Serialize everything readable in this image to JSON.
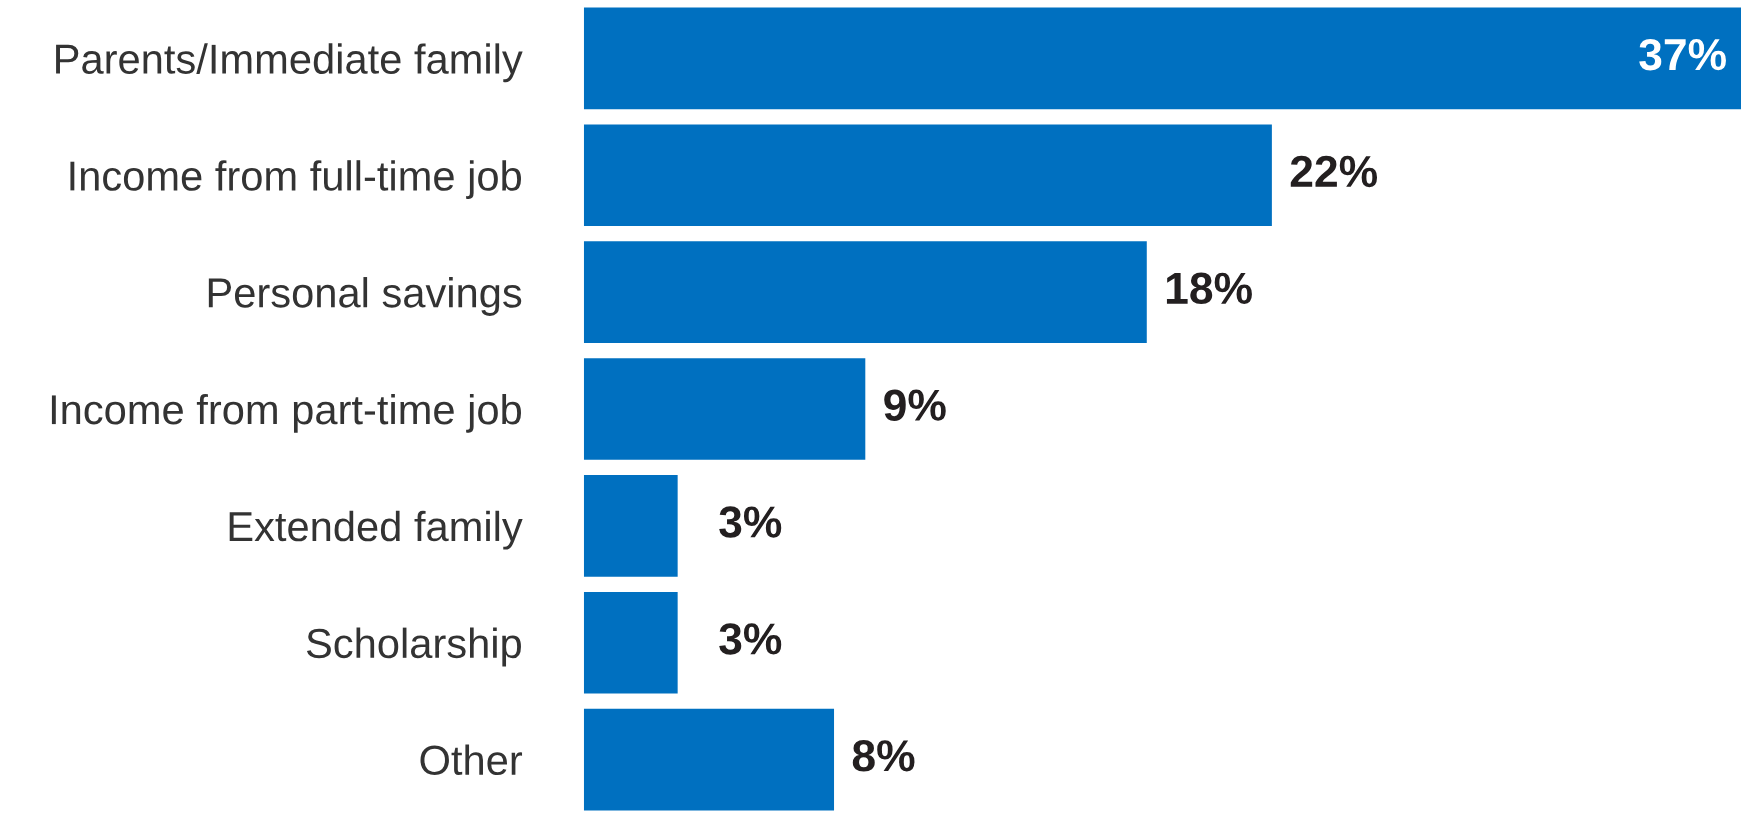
{
  "chart_data": {
    "type": "bar",
    "orientation": "horizontal",
    "categories": [
      "Parents/Immediate family",
      "Income from full-time job",
      "Personal savings",
      "Income from part-time job",
      "Extended family",
      "Scholarship",
      "Other"
    ],
    "values": [
      37,
      22,
      18,
      9,
      3,
      3,
      8
    ],
    "value_labels": [
      "37%",
      "22%",
      "18%",
      "9%",
      "3%",
      "3%",
      "8%"
    ],
    "color": "#0070c0",
    "grid": false,
    "legend": false
  }
}
